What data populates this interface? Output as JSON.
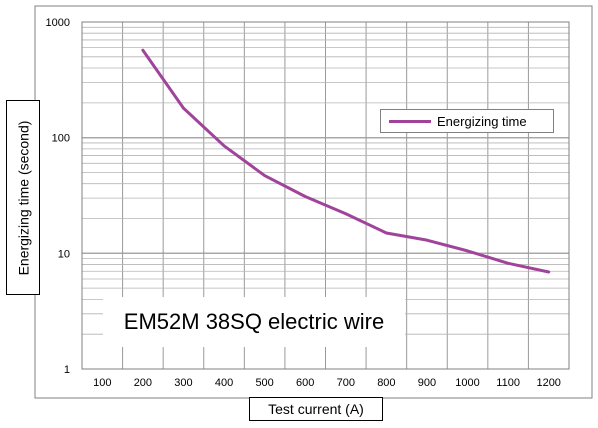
{
  "chart_data": {
    "type": "line",
    "xlabel": "Test current (A)",
    "ylabel": "Energizing time (second)",
    "annotation": "EM52M 38SQ electric wire",
    "x_ticks": [
      "100",
      "200",
      "300",
      "400",
      "500",
      "600",
      "700",
      "800",
      "900",
      "1000",
      "1100",
      "1200"
    ],
    "y_ticks": [
      "1",
      "10",
      "100",
      "1000"
    ],
    "xlim": [
      50,
      1250
    ],
    "ylim": [
      1,
      1000
    ],
    "y_scale": "log",
    "grid": true,
    "legend_position": "upper-right",
    "series": [
      {
        "name": "Energizing time",
        "color": "#a0449b",
        "x": [
          200,
          300,
          400,
          500,
          600,
          700,
          800,
          900,
          1000,
          1100,
          1200
        ],
        "y": [
          570,
          180,
          85,
          47,
          31,
          22,
          15,
          13,
          10.5,
          8.2,
          6.9
        ]
      }
    ]
  }
}
